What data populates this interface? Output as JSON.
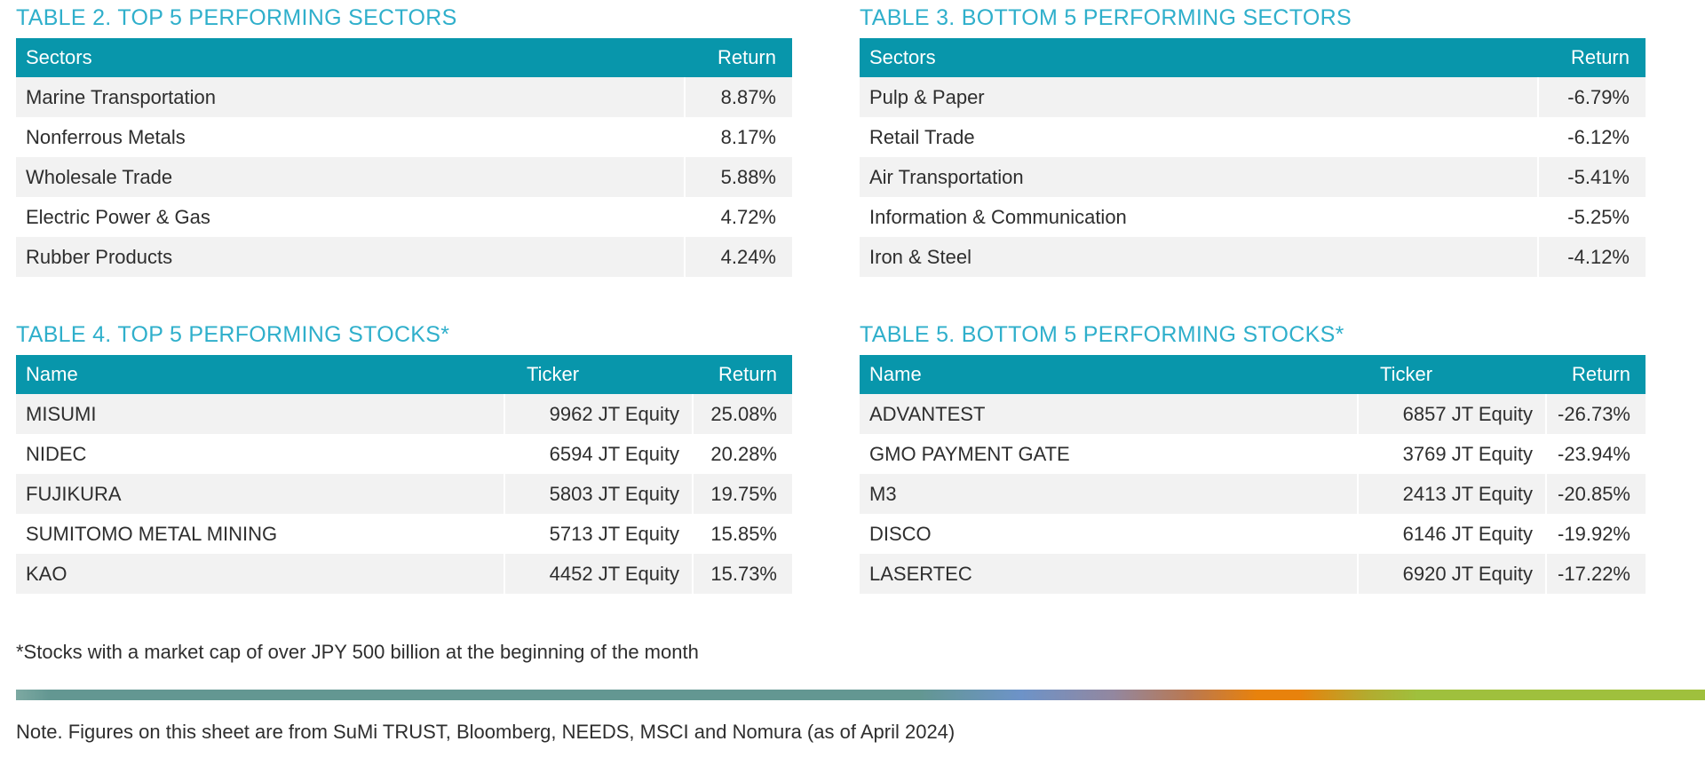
{
  "colors": {
    "title_cyan": "#2fafcb",
    "header_teal": "#0896ab",
    "row_stripe": "#f2f2f2",
    "body_text": "#2e2e2e",
    "divider_left_teal": "#639792",
    "divider_blue": "#6d93c8",
    "divider_orange": "#e8820c",
    "divider_green": "#9fc03d"
  },
  "tables": {
    "table2": {
      "title": "TABLE 2. TOP 5 PERFORMING SECTORS",
      "columns": [
        "Sectors",
        "Return"
      ],
      "rows": [
        [
          "Marine Transportation",
          "8.87%"
        ],
        [
          "Nonferrous Metals",
          "8.17%"
        ],
        [
          "Wholesale Trade",
          "5.88%"
        ],
        [
          "Electric Power & Gas",
          "4.72%"
        ],
        [
          "Rubber Products",
          "4.24%"
        ]
      ]
    },
    "table3": {
      "title": "TABLE 3. BOTTOM 5 PERFORMING SECTORS",
      "columns": [
        "Sectors",
        "Return"
      ],
      "rows": [
        [
          "Pulp & Paper",
          "-6.79%"
        ],
        [
          "Retail Trade",
          "-6.12%"
        ],
        [
          "Air Transportation",
          "-5.41%"
        ],
        [
          "Information & Communication",
          "-5.25%"
        ],
        [
          "Iron & Steel",
          "-4.12%"
        ]
      ]
    },
    "table4": {
      "title": "TABLE 4. TOP 5 PERFORMING STOCKS*",
      "columns": [
        "Name",
        "Ticker",
        "Return"
      ],
      "rows": [
        [
          "MISUMI",
          "9962 JT Equity",
          "25.08%"
        ],
        [
          "NIDEC",
          "6594 JT Equity",
          "20.28%"
        ],
        [
          "FUJIKURA",
          "5803 JT Equity",
          "19.75%"
        ],
        [
          "SUMITOMO METAL MINING",
          "5713 JT Equity",
          "15.85%"
        ],
        [
          "KAO",
          "4452 JT Equity",
          "15.73%"
        ]
      ]
    },
    "table5": {
      "title": "TABLE 5. BOTTOM 5 PERFORMING STOCKS*",
      "columns": [
        "Name",
        "Ticker",
        "Return"
      ],
      "rows": [
        [
          "ADVANTEST",
          "6857 JT Equity",
          "-26.73%"
        ],
        [
          "GMO PAYMENT GATE",
          "3769 JT Equity",
          "-23.94%"
        ],
        [
          "M3",
          "2413 JT Equity",
          "-20.85%"
        ],
        [
          "DISCO",
          "6146 JT Equity",
          "-19.92%"
        ],
        [
          "LASERTEC",
          "6920 JT Equity",
          "-17.22%"
        ]
      ]
    }
  },
  "footnote": "*Stocks with a market cap of over JPY 500 billion at the beginning of the month",
  "note": "Note. Figures on this sheet are from SuMi TRUST, Bloomberg, NEEDS, MSCI and Nomura (as of April 2024)"
}
